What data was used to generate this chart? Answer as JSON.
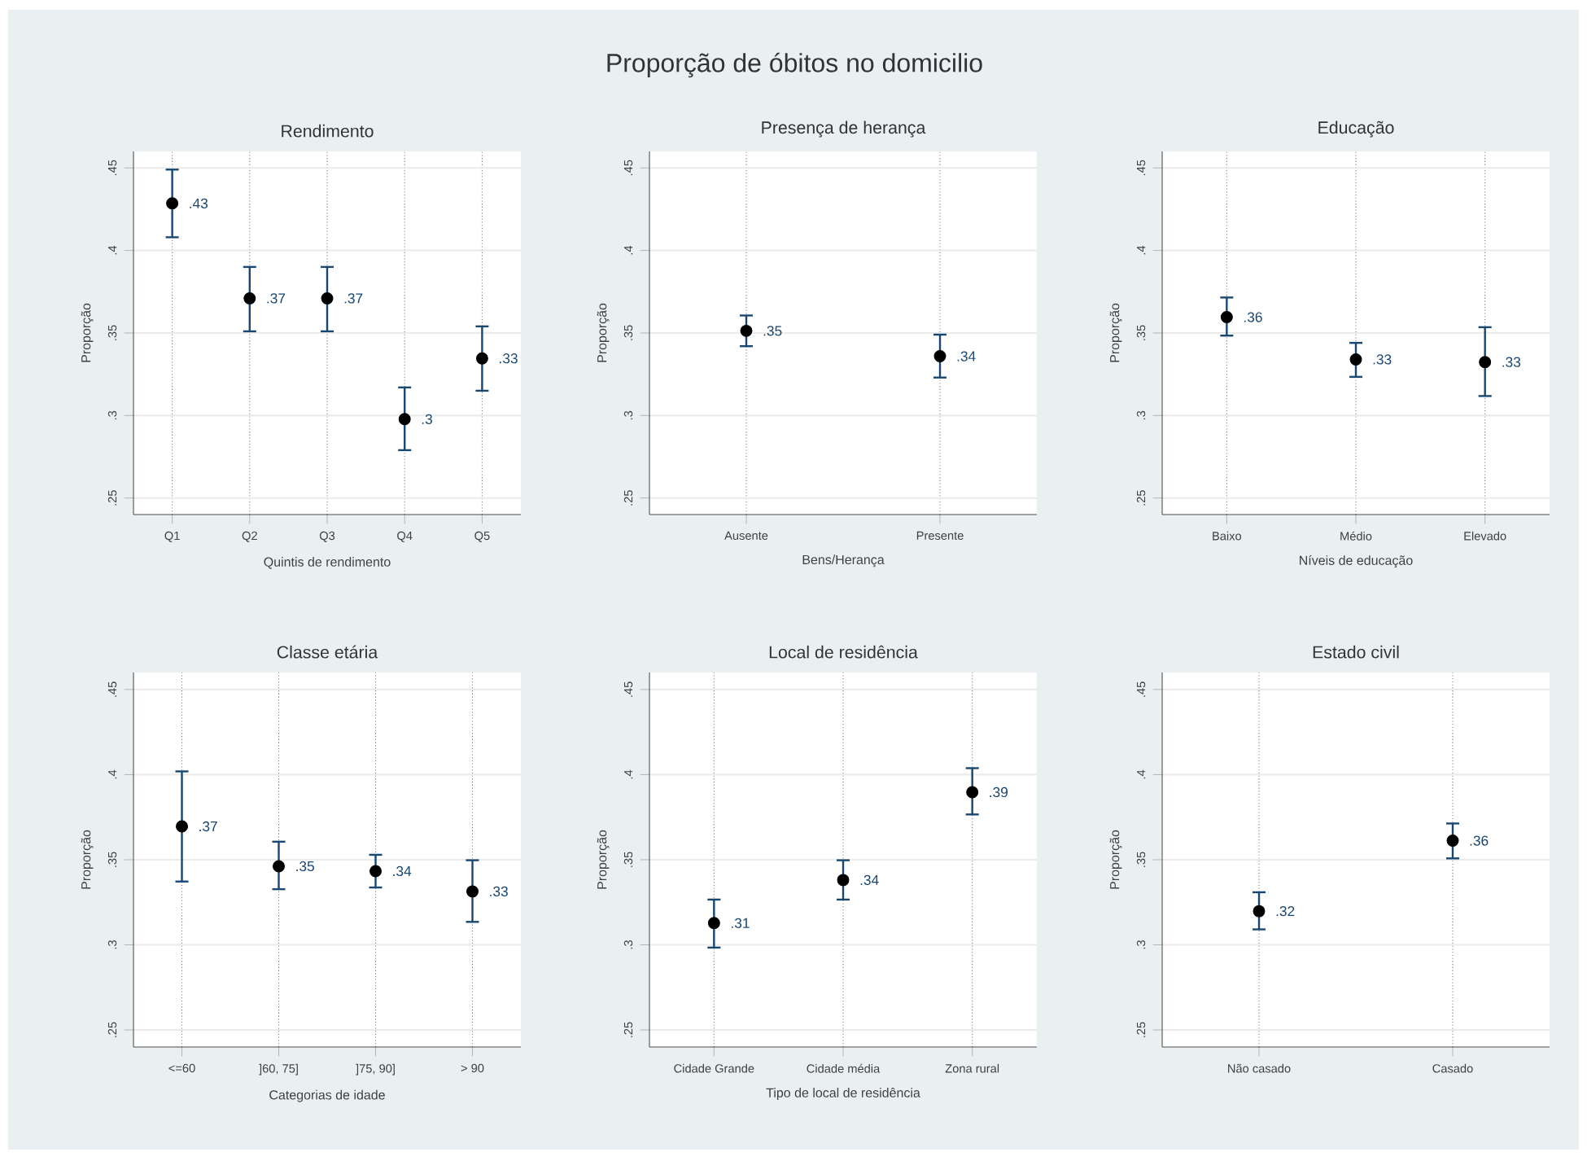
{
  "chart_data": [
    {
      "type": "scatter",
      "title": "Rendimento",
      "xlabel": "Quintis de rendimento",
      "ylabel": "Proporção",
      "annotations": [
        "Proporção de óbitos no domicilio"
      ],
      "categories": [
        "Q1",
        "Q2",
        "Q3",
        "Q4",
        "Q5"
      ],
      "values": [
        0.4285,
        0.371,
        0.371,
        0.2978,
        0.3346
      ],
      "errors": [
        [
          0.408,
          0.449
        ],
        [
          0.351,
          0.39
        ],
        [
          0.351,
          0.39
        ],
        [
          0.279,
          0.317
        ],
        [
          0.315,
          0.354
        ]
      ],
      "value_labels": [
        ".43",
        ".37",
        ".37",
        ".3",
        ".33"
      ],
      "color": "#000000",
      "marker": "circle",
      "grid": true,
      "ylim": [
        0.24,
        0.46
      ],
      "yticks": [
        {
          "value": 0.25,
          "label": ".25"
        },
        {
          "value": 0.3,
          "label": ".3"
        },
        {
          "value": 0.35,
          "label": ".35"
        },
        {
          "value": 0.4,
          "label": ".4"
        },
        {
          "value": 0.45,
          "label": ".45"
        }
      ]
    },
    {
      "type": "scatter",
      "title": "Presença de herança",
      "xlabel": "Bens/Herança",
      "ylabel": "Proporção",
      "categories": [
        "Ausente",
        "Presente"
      ],
      "values": [
        0.3513,
        0.3359
      ],
      "errors": [
        [
          0.342,
          0.3606
        ],
        [
          0.323,
          0.349
        ]
      ],
      "value_labels": [
        ".35",
        ".34"
      ],
      "color": "#000000",
      "marker": "circle",
      "grid": true,
      "ylim": [
        0.24,
        0.46
      ],
      "yticks": [
        {
          "value": 0.25,
          "label": ".25"
        },
        {
          "value": 0.3,
          "label": ".3"
        },
        {
          "value": 0.35,
          "label": ".35"
        },
        {
          "value": 0.4,
          "label": ".4"
        },
        {
          "value": 0.45,
          "label": ".45"
        }
      ]
    },
    {
      "type": "scatter",
      "title": "Educação",
      "xlabel": "Níveis de educação",
      "ylabel": "Proporção",
      "categories": [
        "Baixo",
        "Médio",
        "Elevado"
      ],
      "values": [
        0.3596,
        0.334,
        0.3324
      ],
      "errors": [
        [
          0.3484,
          0.3715
        ],
        [
          0.3234,
          0.344
        ],
        [
          0.3118,
          0.3535
        ]
      ],
      "value_labels": [
        ".36",
        ".33",
        ".33"
      ],
      "color": "#000000",
      "marker": "circle",
      "grid": true,
      "ylim": [
        0.24,
        0.46
      ],
      "yticks": [
        {
          "value": 0.25,
          "label": ".25"
        },
        {
          "value": 0.3,
          "label": ".3"
        },
        {
          "value": 0.35,
          "label": ".35"
        },
        {
          "value": 0.4,
          "label": ".4"
        },
        {
          "value": 0.45,
          "label": ".45"
        }
      ]
    },
    {
      "type": "scatter",
      "title": "Classe etária",
      "xlabel": "Categorias de idade",
      "ylabel": "Proporção",
      "categories": [
        "<=60",
        "]60, 75]",
        "]75, 90]",
        "> 90"
      ],
      "values": [
        0.3696,
        0.3462,
        0.3433,
        0.3314
      ],
      "errors": [
        [
          0.3372,
          0.4019
        ],
        [
          0.3327,
          0.3606
        ],
        [
          0.3337,
          0.3529
        ],
        [
          0.3135,
          0.3497
        ]
      ],
      "value_labels": [
        ".37",
        ".35",
        ".34",
        ".33"
      ],
      "color": "#000000",
      "marker": "circle",
      "grid": true,
      "ylim": [
        0.24,
        0.46
      ],
      "yticks": [
        {
          "value": 0.25,
          "label": ".25"
        },
        {
          "value": 0.3,
          "label": ".3"
        },
        {
          "value": 0.35,
          "label": ".35"
        },
        {
          "value": 0.4,
          "label": ".4"
        },
        {
          "value": 0.45,
          "label": ".45"
        }
      ]
    },
    {
      "type": "scatter",
      "title": "Local de residência",
      "xlabel": "Tipo de local de residência",
      "ylabel": "Proporção",
      "categories": [
        "Cidade Grande",
        "Cidade média",
        "Zona rural"
      ],
      "values": [
        0.3128,
        0.3381,
        0.3897
      ],
      "errors": [
        [
          0.2984,
          0.3266
        ],
        [
          0.3266,
          0.3497
        ],
        [
          0.3766,
          0.4038
        ]
      ],
      "value_labels": [
        ".31",
        ".34",
        ".39"
      ],
      "color": "#000000",
      "marker": "circle",
      "grid": true,
      "ylim": [
        0.24,
        0.46
      ],
      "yticks": [
        {
          "value": 0.25,
          "label": ".25"
        },
        {
          "value": 0.3,
          "label": ".3"
        },
        {
          "value": 0.35,
          "label": ".35"
        },
        {
          "value": 0.4,
          "label": ".4"
        },
        {
          "value": 0.45,
          "label": ".45"
        }
      ]
    },
    {
      "type": "scatter",
      "title": "Estado civil",
      "ylabel": "Proporção",
      "categories": [
        "Não casado",
        "Casado"
      ],
      "values": [
        0.3198,
        0.3612
      ],
      "errors": [
        [
          0.3091,
          0.3309
        ],
        [
          0.3508,
          0.3713
        ]
      ],
      "value_labels": [
        ".32",
        ".36"
      ],
      "color": "#000000",
      "marker": "circle",
      "grid": true,
      "ylim": [
        0.24,
        0.46
      ],
      "yticks": [
        {
          "value": 0.25,
          "label": ".25"
        },
        {
          "value": 0.3,
          "label": ".3"
        },
        {
          "value": 0.35,
          "label": ".35"
        },
        {
          "value": 0.4,
          "label": ".4"
        },
        {
          "value": 0.45,
          "label": ".45"
        }
      ]
    }
  ]
}
